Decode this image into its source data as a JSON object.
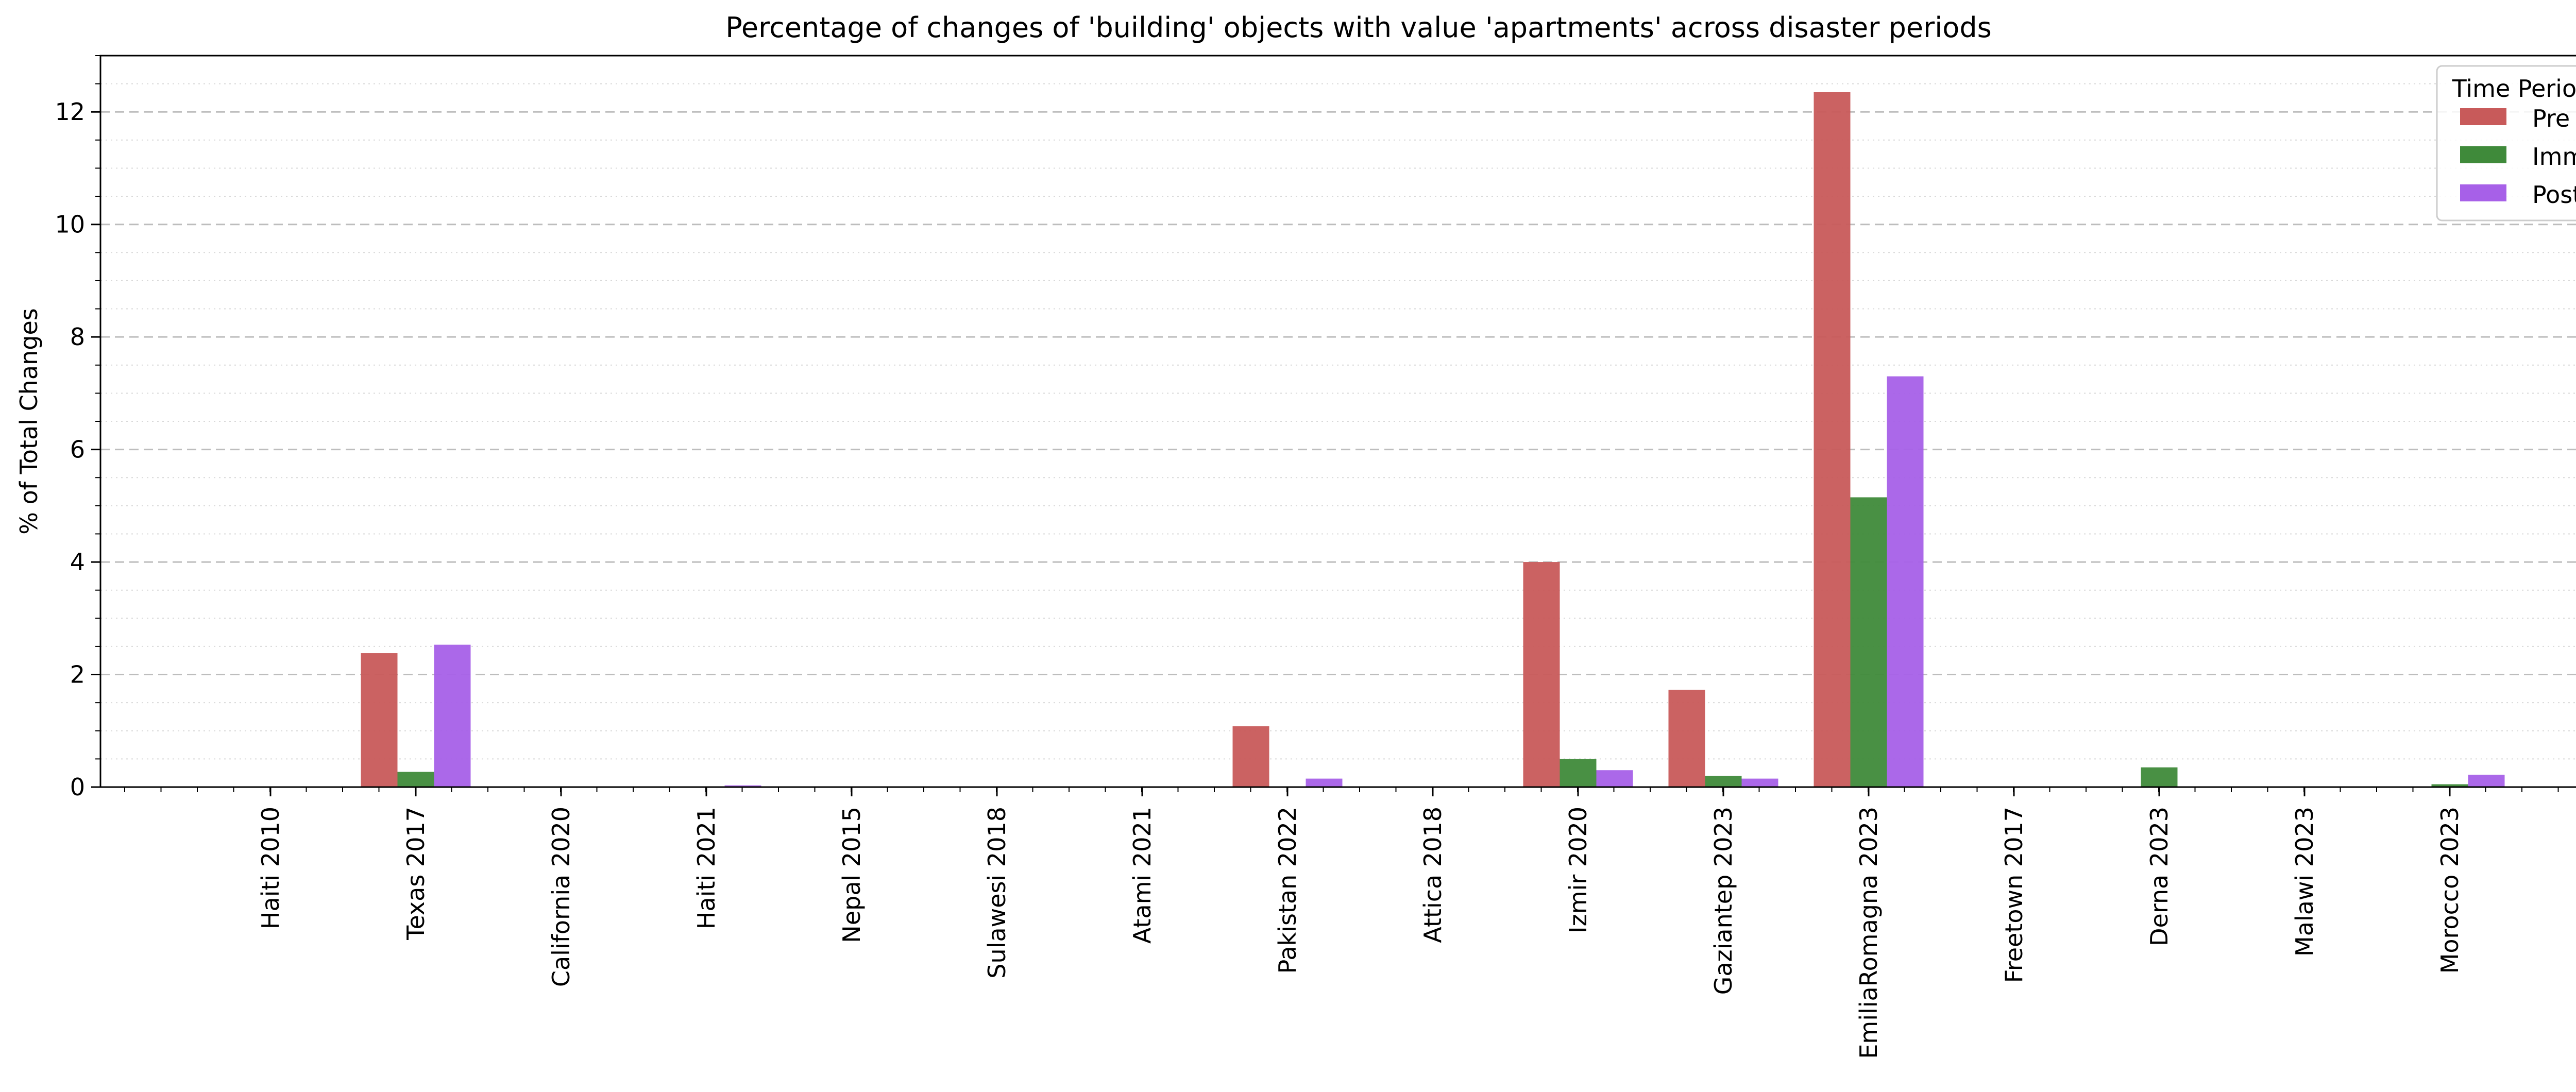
{
  "chart_data": {
    "type": "bar",
    "title": "Percentage of changes of 'building' objects with value 'apartments' across disaster periods",
    "xlabel": "",
    "ylabel": "% of Total Changes",
    "ylim": [
      0,
      13
    ],
    "yticks": [
      0,
      2,
      4,
      6,
      8,
      10,
      12
    ],
    "ytick_labels": [
      "0",
      "2",
      "4",
      "6",
      "8",
      "10",
      "12"
    ],
    "grid": "horizontal dashed major, dotted minor",
    "legend": {
      "title": "Time Period",
      "placement": "top-right"
    },
    "categories": [
      "Haiti 2010",
      "Texas 2017",
      "California 2020",
      "Haiti 2021",
      "Nepal 2015",
      "Sulawesi 2018",
      "Atami 2021",
      "Pakistan 2022",
      "Attica 2018",
      "Izmir 2020",
      "Gaziantep 2023",
      "EmiliaRomagna 2023",
      "Freetown 2017",
      "Derna 2023",
      "Malawi 2023",
      "Morocco 2023"
    ],
    "series": [
      {
        "name": "Pre",
        "color": "#c85a5a",
        "values": [
          0,
          2.38,
          0,
          0,
          0,
          0,
          0,
          1.08,
          0,
          4.0,
          1.73,
          12.35,
          0,
          0,
          0,
          0
        ]
      },
      {
        "name": "Imm",
        "color": "#3f8a3a",
        "values": [
          0,
          0.27,
          0,
          0,
          0,
          0,
          0,
          0,
          0,
          0.5,
          0.2,
          5.15,
          0,
          0.35,
          0,
          0.05
        ]
      },
      {
        "name": "Post",
        "color": "#a760e8",
        "values": [
          0,
          2.53,
          0,
          0.03,
          0,
          0,
          0,
          0.15,
          0,
          0.3,
          0.15,
          7.3,
          0,
          0,
          0,
          0.22
        ]
      }
    ]
  }
}
